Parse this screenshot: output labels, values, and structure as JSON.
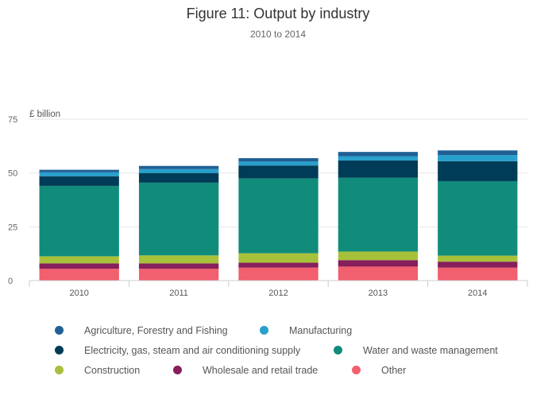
{
  "chart_data": {
    "type": "bar",
    "stacked": true,
    "title": "Figure 11: Output by industry",
    "subtitle": "2010 to 2014",
    "ylabel": "£ billion",
    "xlabel": "",
    "categories": [
      "2010",
      "2011",
      "2012",
      "2013",
      "2014"
    ],
    "ylim": [
      0,
      75
    ],
    "yticks": [
      "0",
      "25",
      "50",
      "75"
    ],
    "grid": true,
    "legend_position": "bottom",
    "series": [
      {
        "name": "Other",
        "color": "#f25f6e",
        "values": [
          5.5,
          5.5,
          6.0,
          6.5,
          6.0
        ]
      },
      {
        "name": "Wholesale and retail trade",
        "color": "#861f5b",
        "values": [
          2.5,
          2.5,
          2.3,
          3.0,
          2.8
        ]
      },
      {
        "name": "Construction",
        "color": "#a8c13a",
        "values": [
          3.3,
          3.7,
          4.4,
          4.0,
          2.8
        ]
      },
      {
        "name": "Water and waste management",
        "color": "#118c7b",
        "values": [
          32.7,
          33.8,
          34.8,
          34.3,
          34.6
        ]
      },
      {
        "name": "Electricity, gas, steam and air conditioning supply",
        "color": "#003c57",
        "values": [
          4.5,
          4.5,
          6.0,
          8.0,
          9.3
        ]
      },
      {
        "name": "Manufacturing",
        "color": "#27a0cc",
        "values": [
          1.8,
          1.8,
          1.8,
          2.0,
          2.8
        ]
      },
      {
        "name": "Agriculture, Forestry and Fishing",
        "color": "#206095",
        "values": [
          1.2,
          1.5,
          1.6,
          2.0,
          2.2
        ]
      }
    ]
  },
  "legend": [
    {
      "label": "Agriculture, Forestry and Fishing",
      "color": "#206095"
    },
    {
      "label": "Manufacturing",
      "color": "#27a0cc"
    },
    {
      "label": "Electricity, gas, steam and air conditioning supply",
      "color": "#003c57"
    },
    {
      "label": "Water and waste management",
      "color": "#118c7b"
    },
    {
      "label": "Construction",
      "color": "#a8c13a"
    },
    {
      "label": "Wholesale and retail trade",
      "color": "#861f5b"
    },
    {
      "label": "Other",
      "color": "#f25f6e"
    }
  ]
}
